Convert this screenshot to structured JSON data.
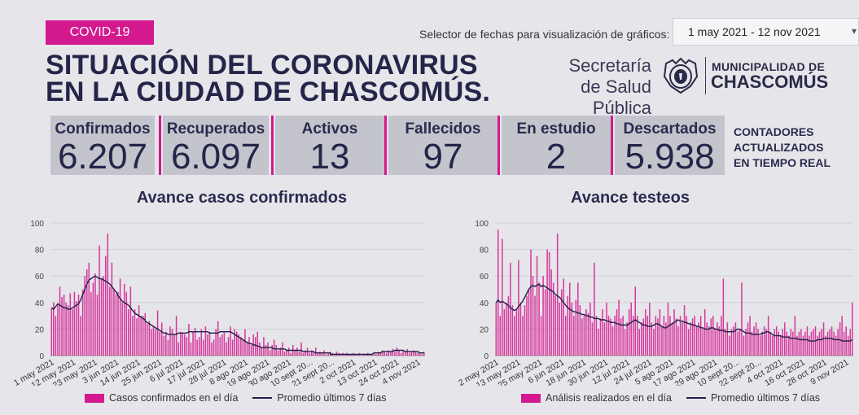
{
  "tag": "COVID-19",
  "selector": {
    "label": "Selector de fechas para visualización de gráficos:",
    "value": "1 may 2021 - 12 nov 2021"
  },
  "title_line1": "SITUACIÓN DEL CORONAVIRUS",
  "title_line2": "EN LA CIUDAD DE CHASCOMÚS.",
  "secretaria_line1": "Secretaría",
  "secretaria_line2": "de Salud Pública",
  "municipalidad_line1": "MUNICIPALIDAD DE",
  "municipalidad_line2": "CHASCOMÚS",
  "counters": [
    {
      "label": "Confirmados",
      "value": "6.207"
    },
    {
      "label": "Recuperados",
      "value": "6.097"
    },
    {
      "label": "Activos",
      "value": "13"
    },
    {
      "label": "Fallecidos",
      "value": "97"
    },
    {
      "label": "En estudio",
      "value": "2"
    },
    {
      "label": "Descartados",
      "value": "5.938"
    }
  ],
  "realtime_note": [
    "CONTADORES",
    "ACTUALIZADOS",
    "EN TIEMPO REAL"
  ],
  "colors": {
    "accent": "#d4198f",
    "navy": "#1f1f4a",
    "counter_bg": "#c4c4cc",
    "page_bg": "#e6e6ea"
  },
  "chart_data": [
    {
      "type": "bar",
      "title": "Avance casos confirmados",
      "ylim": [
        0,
        100
      ],
      "yticks": [
        0,
        20,
        40,
        60,
        80,
        100
      ],
      "grid": true,
      "legend_placement": "bottom",
      "x_ticks": [
        "1 may 2021",
        "12 may 2021",
        "23 may 2021",
        "3 jun 2021",
        "14 jun 2021",
        "25 jun 2021",
        "6 jul 2021",
        "17 jul 2021",
        "28 jul 2021",
        "8 ago 2021",
        "19 ago 2021",
        "30 ago 2021",
        "10 sept 20...",
        "21 sept 20...",
        "2 oct 2021",
        "13 oct 2021",
        "24 oct 2021",
        "4 nov 2021"
      ],
      "series": [
        {
          "name": "Casos confirmados en el día",
          "kind": "bar",
          "values": [
            36,
            40,
            30,
            38,
            52,
            44,
            46,
            40,
            38,
            47,
            35,
            48,
            41,
            46,
            30,
            50,
            60,
            65,
            70,
            48,
            55,
            62,
            46,
            83,
            58,
            60,
            75,
            92,
            52,
            70,
            50,
            46,
            48,
            58,
            40,
            54,
            48,
            35,
            52,
            30,
            35,
            28,
            38,
            30,
            30,
            32,
            24,
            26,
            20,
            22,
            20,
            34,
            18,
            25,
            15,
            18,
            12,
            22,
            20,
            16,
            30,
            10,
            18,
            17,
            16,
            14,
            24,
            10,
            18,
            21,
            12,
            14,
            20,
            12,
            22,
            16,
            18,
            10,
            12,
            20,
            26,
            14,
            16,
            18,
            10,
            14,
            22,
            12,
            20,
            18,
            16,
            14,
            12,
            20,
            10,
            14,
            8,
            16,
            14,
            18,
            10,
            6,
            14,
            8,
            10,
            4,
            8,
            12,
            8,
            4,
            6,
            10,
            3,
            4,
            6,
            2,
            8,
            4,
            6,
            3,
            10,
            2,
            4,
            6,
            2,
            4,
            3,
            6,
            2,
            3,
            2,
            4,
            1,
            2,
            3,
            2,
            1,
            3,
            2,
            1,
            2,
            1,
            2,
            1,
            1,
            2,
            1,
            1,
            2,
            0,
            1,
            1,
            2,
            1,
            1,
            2,
            1,
            3,
            2,
            4,
            3,
            2,
            4,
            3,
            5,
            3,
            6,
            4,
            2,
            4,
            3,
            5,
            2,
            3,
            4,
            3,
            2,
            2,
            1,
            3
          ]
        },
        {
          "name": "Promedio últimos 7 días",
          "kind": "line",
          "values": [
            36,
            35,
            37,
            39,
            38,
            37,
            36,
            36,
            35,
            35,
            36,
            37,
            38,
            39,
            42,
            46,
            50,
            54,
            57,
            58,
            59,
            60,
            59,
            58,
            58,
            57,
            56,
            55,
            54,
            52,
            50,
            48,
            45,
            43,
            41,
            40,
            39,
            38,
            36,
            34,
            32,
            31,
            30,
            29,
            28,
            27,
            26,
            25,
            24,
            23,
            22,
            21,
            20,
            19,
            18,
            17,
            17,
            16,
            16,
            16,
            16,
            16,
            17,
            17,
            17,
            17,
            17,
            18,
            18,
            18,
            18,
            18,
            18,
            18,
            18,
            18,
            18,
            17,
            17,
            17,
            17,
            17,
            18,
            18,
            18,
            18,
            18,
            18,
            17,
            16,
            15,
            14,
            13,
            12,
            11,
            10,
            9,
            9,
            8,
            8,
            7,
            7,
            6,
            6,
            6,
            6,
            6,
            6,
            5,
            5,
            5,
            5,
            5,
            5,
            4,
            4,
            4,
            4,
            4,
            4,
            4,
            4,
            3,
            3,
            3,
            3,
            3,
            3,
            2,
            2,
            2,
            2,
            2,
            2,
            2,
            2,
            1,
            1,
            1,
            1,
            1,
            1,
            1,
            1,
            1,
            1,
            1,
            1,
            1,
            1,
            1,
            1,
            1,
            1,
            1,
            1,
            1,
            2,
            2,
            2,
            2,
            3,
            3,
            3,
            3,
            3,
            3,
            4,
            4,
            4,
            4,
            4,
            3,
            3,
            3,
            3,
            3,
            3,
            3,
            2,
            2,
            2
          ]
        }
      ]
    },
    {
      "type": "bar",
      "title": "Avance testeos",
      "ylim": [
        0,
        100
      ],
      "yticks": [
        0,
        20,
        40,
        60,
        80,
        100
      ],
      "grid": true,
      "legend_placement": "bottom",
      "x_ticks": [
        "2 may 2021",
        "13 may 2021",
        "25 may 2021",
        "6 jun 2021",
        "18 jun 2021",
        "30 jun 2021",
        "12 jul 2021",
        "24 jul 2021",
        "5 ago 2021",
        "17 ago 2021",
        "29 ago 2021",
        "10 sept 20...",
        "22 sept 20...",
        "4 oct 2021",
        "16 oct 2021",
        "28 oct 2021",
        "9 nov 2021"
      ],
      "series": [
        {
          "name": "Análisis realizados en el día",
          "kind": "bar",
          "values": [
            40,
            95,
            30,
            88,
            35,
            40,
            45,
            70,
            38,
            30,
            35,
            72,
            40,
            30,
            38,
            45,
            50,
            80,
            60,
            45,
            75,
            55,
            30,
            60,
            50,
            80,
            78,
            65,
            55,
            45,
            92,
            40,
            50,
            58,
            30,
            45,
            55,
            40,
            30,
            42,
            55,
            38,
            28,
            30,
            35,
            32,
            40,
            25,
            70,
            30,
            20,
            28,
            35,
            25,
            40,
            30,
            28,
            22,
            30,
            35,
            42,
            28,
            30,
            20,
            25,
            35,
            40,
            30,
            52,
            30,
            20,
            25,
            28,
            35,
            30,
            40,
            25,
            20,
            30,
            28,
            35,
            22,
            30,
            25,
            40,
            30,
            25,
            35,
            28,
            22,
            30,
            25,
            38,
            30,
            20,
            25,
            28,
            30,
            22,
            25,
            30,
            20,
            35,
            25,
            22,
            28,
            30,
            20,
            25,
            22,
            30,
            58,
            20,
            25,
            15,
            20,
            22,
            25,
            18,
            20,
            55,
            15,
            20,
            25,
            30,
            18,
            22,
            25,
            20,
            15,
            18,
            22,
            20,
            30,
            18,
            15,
            20,
            22,
            18,
            15,
            20,
            25,
            18,
            15,
            20,
            18,
            30,
            15,
            18,
            20,
            15,
            18,
            22,
            15,
            18,
            20,
            22,
            15,
            18,
            20,
            25,
            15,
            18,
            20,
            22,
            18,
            15,
            20,
            25,
            30,
            18,
            22,
            15,
            20,
            40
          ]
        },
        {
          "name": "Promedio últimos 7 días",
          "kind": "line",
          "values": [
            40,
            42,
            40,
            41,
            40,
            39,
            38,
            36,
            35,
            34,
            35,
            37,
            39,
            41,
            44,
            47,
            50,
            52,
            53,
            52,
            53,
            54,
            52,
            53,
            52,
            51,
            50,
            49,
            48,
            46,
            45,
            44,
            42,
            40,
            38,
            36,
            35,
            34,
            33,
            33,
            32,
            32,
            31,
            31,
            30,
            30,
            29,
            29,
            28,
            28,
            28,
            27,
            27,
            27,
            26,
            26,
            25,
            25,
            25,
            24,
            24,
            23,
            23,
            23,
            23,
            24,
            25,
            26,
            27,
            26,
            25,
            24,
            23,
            23,
            22,
            22,
            22,
            23,
            24,
            24,
            23,
            22,
            21,
            21,
            22,
            23,
            24,
            25,
            26,
            27,
            26,
            26,
            25,
            25,
            24,
            24,
            23,
            23,
            22,
            22,
            21,
            21,
            20,
            20,
            20,
            21,
            21,
            20,
            20,
            19,
            19,
            19,
            18,
            18,
            18,
            18,
            18,
            19,
            20,
            20,
            19,
            18,
            17,
            17,
            17,
            16,
            16,
            16,
            16,
            16,
            17,
            17,
            18,
            18,
            17,
            16,
            15,
            15,
            15,
            15,
            14,
            14,
            14,
            14,
            13,
            13,
            13,
            13,
            12,
            12,
            12,
            12,
            12,
            11,
            11,
            11,
            11,
            12,
            12,
            12,
            13,
            13,
            13,
            13,
            13,
            12,
            12,
            12,
            12,
            11,
            11,
            11,
            11,
            11,
            12
          ]
        }
      ]
    }
  ]
}
